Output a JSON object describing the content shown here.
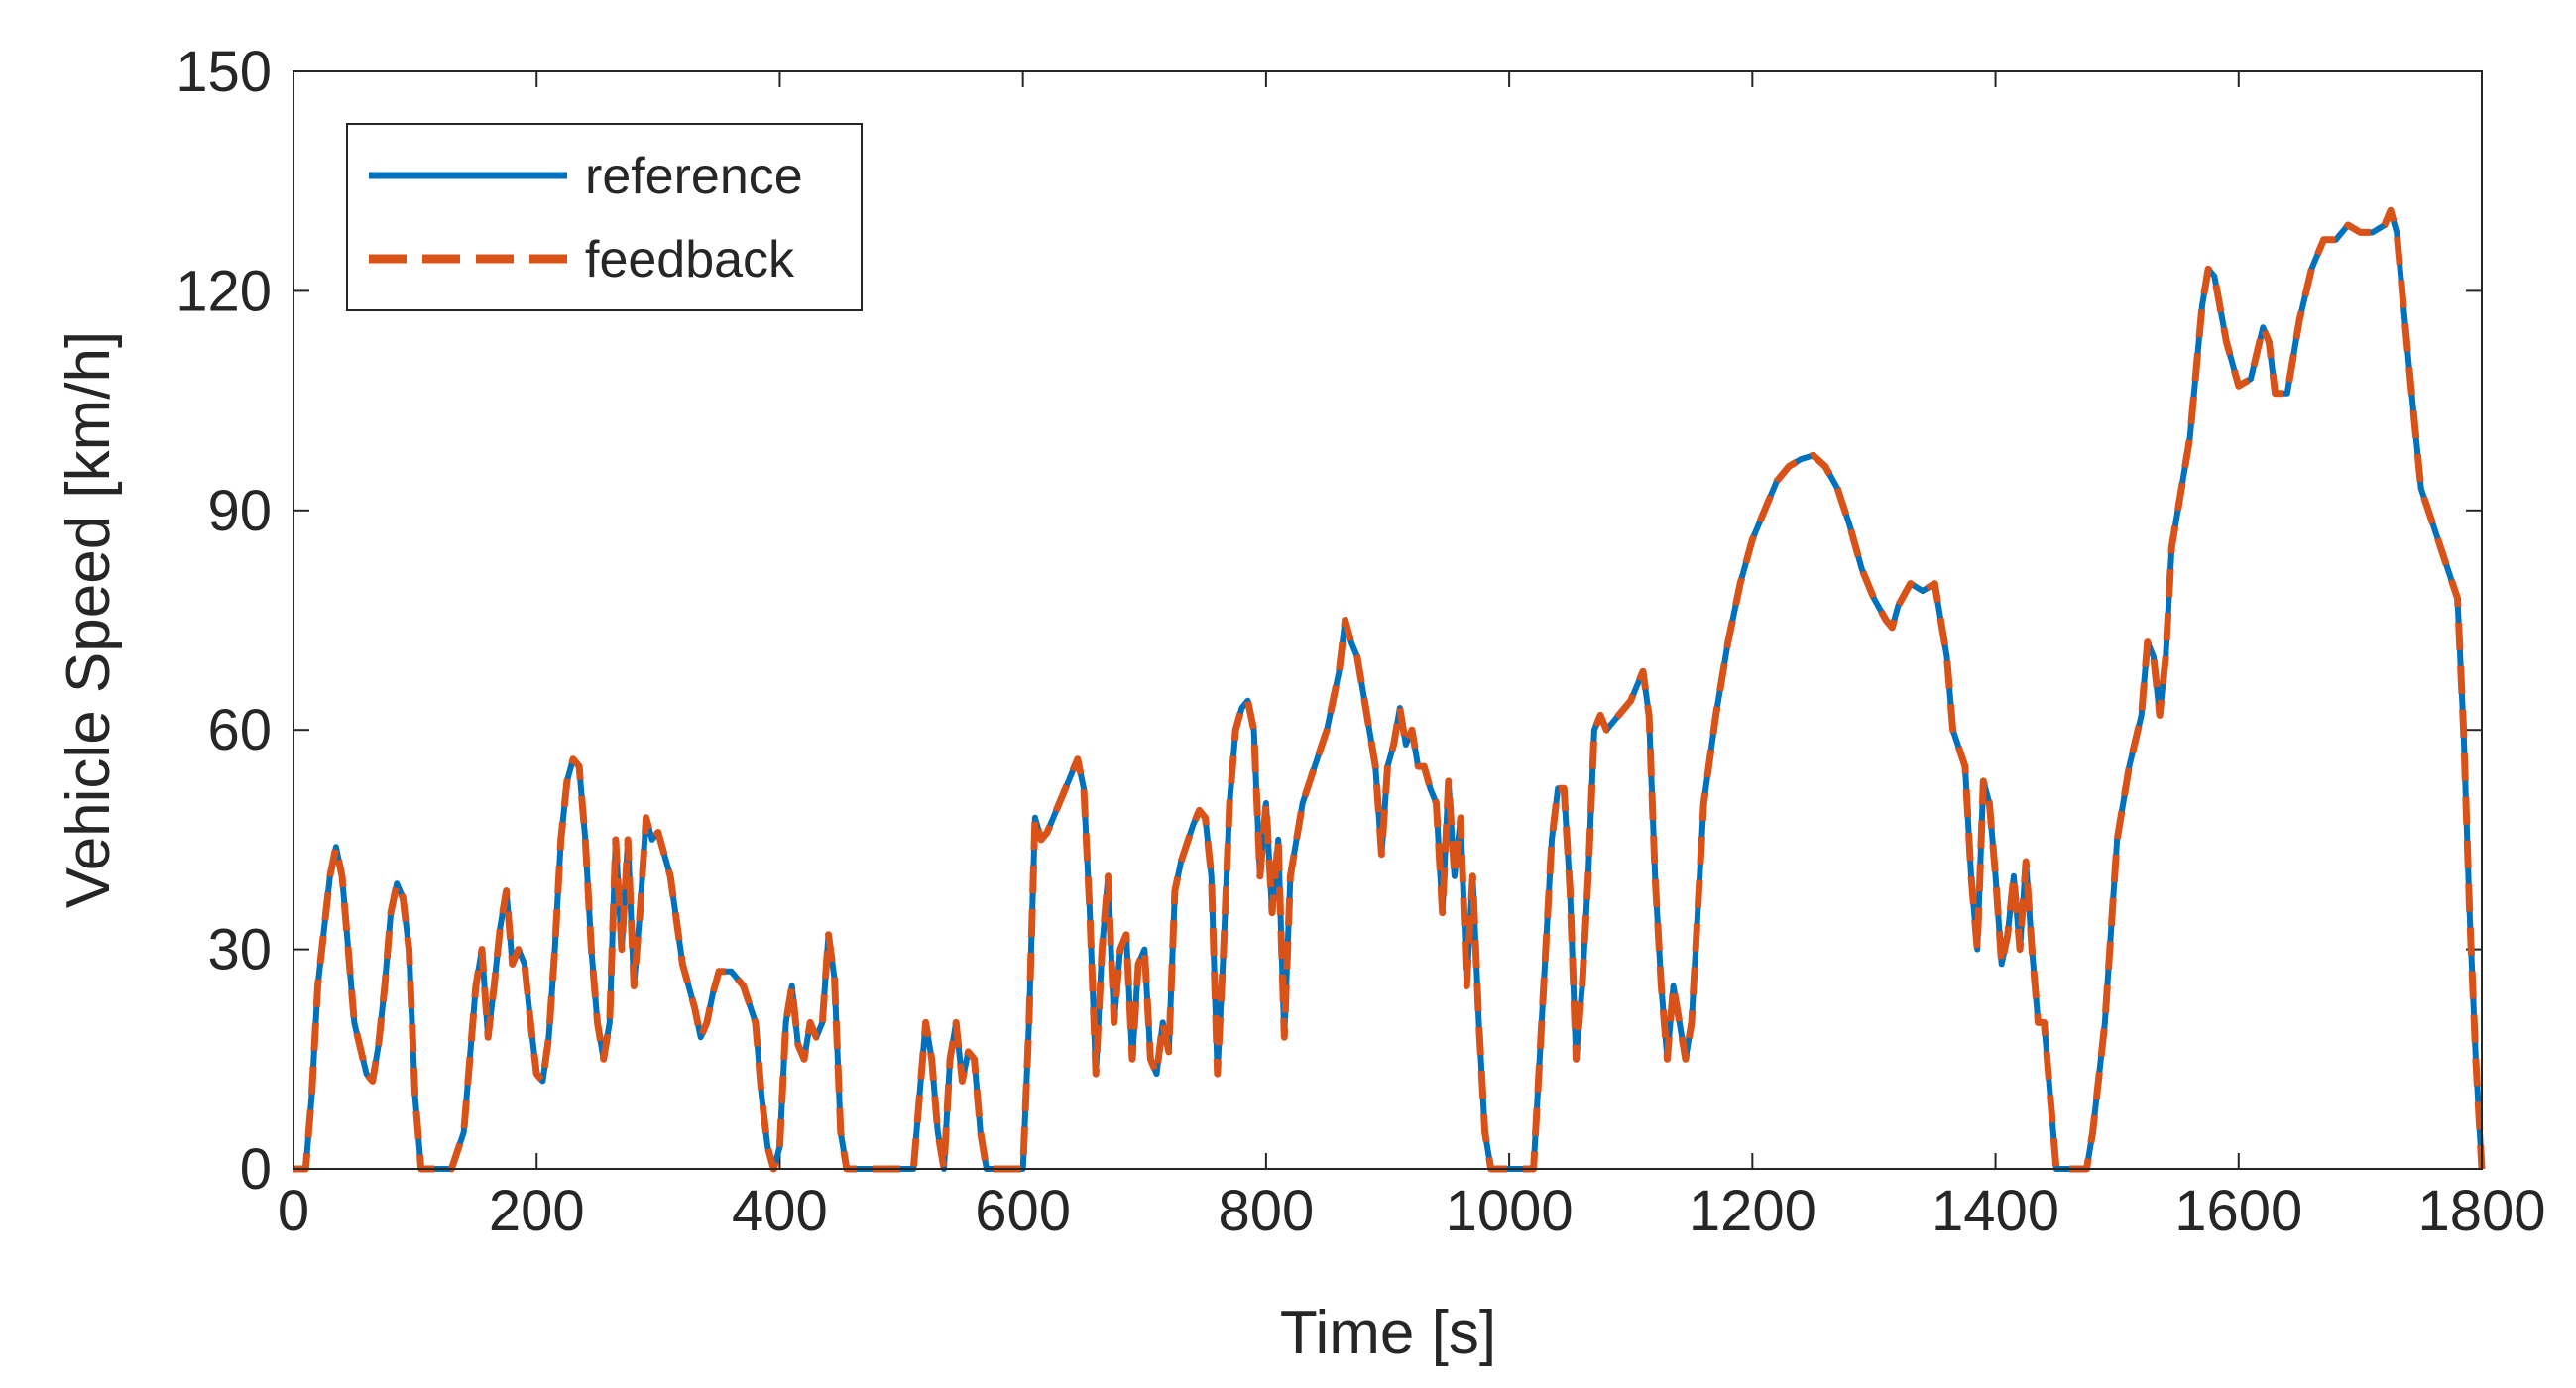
{
  "chart_data": {
    "type": "line",
    "xlabel": "Time [s]",
    "ylabel": "Vehicle Speed [km/h]",
    "xlim": [
      0,
      1800
    ],
    "xticks": [
      0,
      200,
      400,
      600,
      800,
      1000,
      1200,
      1400,
      1600,
      1800
    ],
    "ylim": [
      0,
      150
    ],
    "yticks": [
      0,
      30,
      60,
      90,
      120,
      150
    ],
    "legend": "upper left",
    "x": [
      0,
      10,
      15,
      20,
      30,
      35,
      40,
      45,
      50,
      60,
      65,
      70,
      75,
      80,
      85,
      90,
      95,
      100,
      105,
      130,
      140,
      145,
      150,
      155,
      160,
      165,
      170,
      175,
      180,
      185,
      190,
      195,
      200,
      205,
      210,
      215,
      220,
      225,
      230,
      235,
      240,
      245,
      250,
      255,
      260,
      265,
      270,
      275,
      280,
      285,
      290,
      295,
      300,
      310,
      320,
      330,
      335,
      340,
      345,
      350,
      360,
      370,
      380,
      385,
      390,
      395,
      400,
      405,
      410,
      415,
      420,
      425,
      430,
      435,
      440,
      445,
      450,
      455,
      510,
      515,
      520,
      525,
      530,
      535,
      540,
      545,
      550,
      555,
      560,
      565,
      570,
      600,
      605,
      610,
      615,
      620,
      630,
      640,
      645,
      650,
      655,
      660,
      665,
      670,
      675,
      680,
      685,
      690,
      695,
      700,
      705,
      710,
      715,
      720,
      725,
      730,
      740,
      745,
      750,
      755,
      760,
      765,
      770,
      775,
      780,
      785,
      790,
      795,
      800,
      805,
      810,
      815,
      820,
      830,
      840,
      850,
      860,
      865,
      870,
      875,
      880,
      885,
      890,
      895,
      900,
      905,
      910,
      915,
      920,
      925,
      930,
      935,
      940,
      945,
      950,
      955,
      960,
      965,
      970,
      975,
      980,
      985,
      1020,
      1025,
      1030,
      1035,
      1040,
      1045,
      1050,
      1055,
      1060,
      1065,
      1070,
      1075,
      1080,
      1090,
      1100,
      1110,
      1115,
      1120,
      1125,
      1130,
      1135,
      1140,
      1145,
      1150,
      1160,
      1170,
      1180,
      1190,
      1200,
      1210,
      1220,
      1230,
      1240,
      1250,
      1260,
      1270,
      1280,
      1290,
      1300,
      1310,
      1315,
      1320,
      1330,
      1340,
      1350,
      1360,
      1365,
      1375,
      1380,
      1385,
      1390,
      1395,
      1400,
      1405,
      1410,
      1415,
      1420,
      1425,
      1430,
      1435,
      1440,
      1445,
      1450,
      1475,
      1480,
      1490,
      1500,
      1510,
      1520,
      1525,
      1530,
      1535,
      1540,
      1545,
      1550,
      1560,
      1570,
      1575,
      1580,
      1590,
      1600,
      1610,
      1620,
      1625,
      1630,
      1640,
      1650,
      1660,
      1670,
      1680,
      1690,
      1700,
      1710,
      1720,
      1725,
      1730,
      1740,
      1750,
      1760,
      1770,
      1780,
      1785,
      1790,
      1795,
      1800
    ],
    "series": [
      {
        "name": "reference",
        "color": "#0072bd",
        "dash": false,
        "values": [
          0,
          0,
          10,
          25,
          40,
          44,
          40,
          30,
          20,
          13,
          12,
          17,
          25,
          35,
          39,
          37,
          30,
          10,
          0,
          0,
          5,
          15,
          25,
          30,
          18,
          25,
          33,
          38,
          28,
          30,
          28,
          20,
          13,
          12,
          18,
          30,
          45,
          53,
          56,
          55,
          45,
          30,
          20,
          15,
          20,
          45,
          30,
          45,
          25,
          35,
          48,
          45,
          46,
          40,
          28,
          22,
          18,
          20,
          24,
          27,
          27,
          25,
          20,
          10,
          3,
          0,
          3,
          20,
          25,
          17,
          15,
          20,
          18,
          20,
          32,
          26,
          5,
          0,
          0,
          10,
          20,
          15,
          5,
          0,
          15,
          20,
          12,
          16,
          15,
          5,
          0,
          0,
          20,
          48,
          45,
          46,
          50,
          54,
          56,
          52,
          35,
          13,
          30,
          40,
          20,
          30,
          32,
          15,
          28,
          30,
          15,
          13,
          20,
          16,
          38,
          42,
          47,
          49,
          48,
          40,
          13,
          30,
          50,
          60,
          63,
          64,
          60,
          40,
          50,
          35,
          45,
          18,
          40,
          50,
          55,
          60,
          68,
          75,
          72,
          70,
          65,
          60,
          55,
          43,
          55,
          58,
          63,
          58,
          60,
          55,
          55,
          52,
          50,
          35,
          53,
          40,
          48,
          25,
          40,
          20,
          5,
          0,
          0,
          15,
          30,
          45,
          52,
          52,
          38,
          15,
          25,
          40,
          60,
          62,
          60,
          62,
          64,
          68,
          62,
          40,
          25,
          15,
          25,
          20,
          15,
          20,
          50,
          62,
          72,
          80,
          86,
          90,
          94,
          96,
          97,
          97.5,
          96,
          93,
          88,
          82,
          78,
          75,
          74,
          77,
          80,
          79,
          80,
          70,
          60,
          55,
          40,
          30,
          53,
          50,
          40,
          28,
          32,
          40,
          30,
          42,
          30,
          20,
          20,
          10,
          0,
          0,
          5,
          20,
          45,
          55,
          62,
          72,
          70,
          62,
          70,
          85,
          90,
          100,
          118,
          123,
          122,
          113,
          107,
          108,
          115,
          113,
          106,
          106,
          116,
          123,
          127,
          127,
          129,
          128,
          128,
          129,
          131,
          128,
          110,
          93,
          88,
          83,
          78,
          60,
          35,
          15,
          0
        ]
      },
      {
        "name": "feedback",
        "color": "#d95319",
        "dash": true,
        "values": [
          0,
          0,
          10,
          25,
          40,
          44,
          40,
          30,
          20,
          13,
          12,
          17,
          25,
          35,
          39,
          37,
          30,
          10,
          0,
          0,
          5,
          15,
          25,
          30,
          18,
          25,
          33,
          38,
          28,
          30,
          28,
          20,
          13,
          12,
          18,
          30,
          45,
          53,
          56,
          55,
          45,
          30,
          20,
          15,
          20,
          45,
          30,
          45,
          25,
          35,
          48,
          45,
          46,
          40,
          28,
          22,
          18,
          20,
          24,
          27,
          27,
          25,
          20,
          10,
          3,
          0,
          3,
          20,
          25,
          17,
          15,
          20,
          18,
          20,
          32,
          26,
          5,
          0,
          0,
          10,
          20,
          15,
          5,
          0,
          15,
          20,
          12,
          16,
          15,
          5,
          0,
          0,
          20,
          48,
          45,
          46,
          50,
          54,
          56,
          52,
          35,
          13,
          30,
          40,
          20,
          30,
          32,
          15,
          28,
          30,
          15,
          13,
          20,
          16,
          38,
          42,
          47,
          49,
          48,
          40,
          13,
          30,
          50,
          60,
          63,
          64,
          60,
          40,
          50,
          35,
          45,
          18,
          40,
          50,
          55,
          60,
          68,
          75,
          72,
          70,
          65,
          60,
          55,
          43,
          55,
          58,
          63,
          58,
          60,
          55,
          55,
          52,
          50,
          35,
          53,
          40,
          48,
          25,
          40,
          20,
          5,
          0,
          0,
          15,
          30,
          45,
          52,
          52,
          38,
          15,
          25,
          40,
          60,
          62,
          60,
          62,
          64,
          68,
          62,
          40,
          25,
          15,
          25,
          20,
          15,
          20,
          50,
          62,
          72,
          80,
          86,
          90,
          94,
          96,
          97,
          97.5,
          96,
          93,
          88,
          82,
          78,
          75,
          74,
          77,
          80,
          79,
          80,
          70,
          60,
          55,
          40,
          30,
          53,
          50,
          40,
          28,
          32,
          40,
          30,
          42,
          30,
          20,
          20,
          10,
          0,
          0,
          5,
          20,
          45,
          55,
          62,
          72,
          70,
          62,
          70,
          85,
          90,
          100,
          118,
          123,
          122,
          113,
          107,
          108,
          115,
          113,
          106,
          106,
          116,
          123,
          127,
          127,
          129,
          128,
          128,
          129,
          131,
          128,
          110,
          93,
          88,
          83,
          78,
          60,
          35,
          15,
          0
        ]
      }
    ]
  }
}
